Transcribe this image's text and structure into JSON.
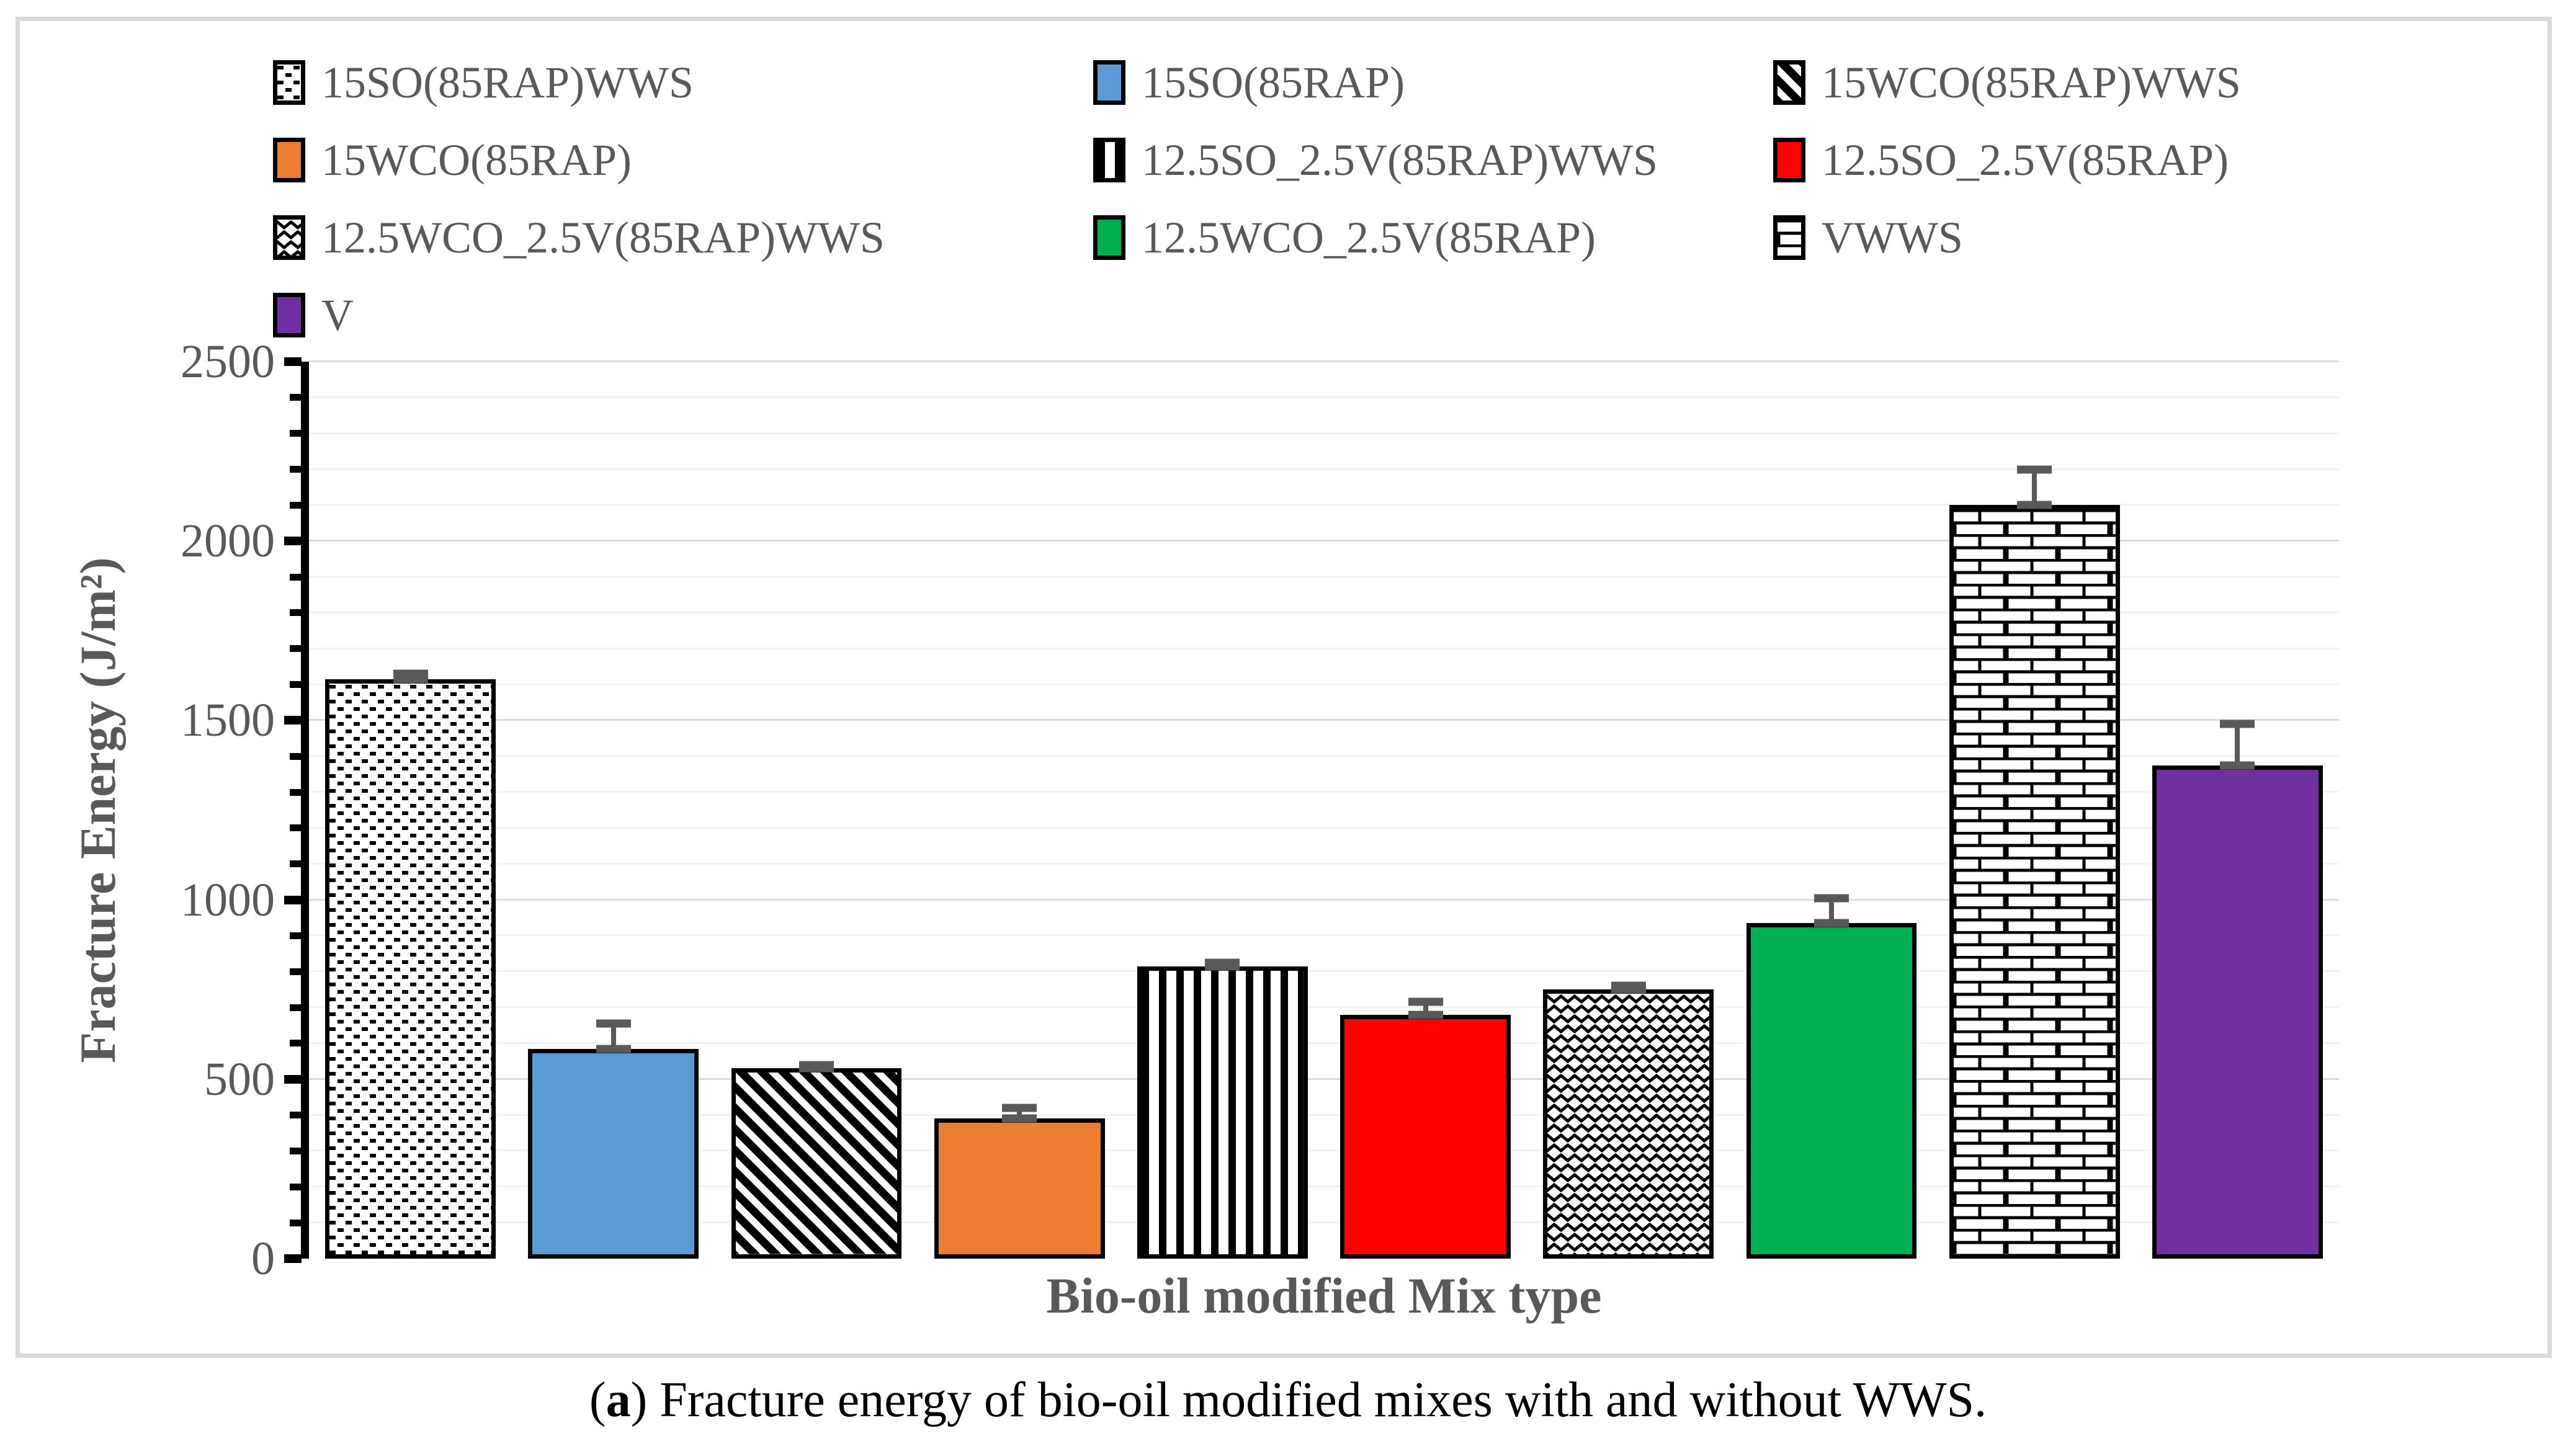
{
  "figure": {
    "caption": {
      "open": "(",
      "letter": "a",
      "close": ")",
      "text": " Fracture energy of bio-oil modified mixes with and without WWS."
    },
    "y_axis": {
      "title": "Fracture Energy (J/m²)",
      "min": 0,
      "max": 2500,
      "minor_step": 100,
      "major_step": 500,
      "tick_labels": [
        "0",
        "500",
        "1000",
        "1500",
        "2000",
        "2500"
      ]
    },
    "x_axis": {
      "title": "Bio-oil modified Mix type"
    },
    "colors": {
      "text_gray": "#595959",
      "error_bar": "#595959",
      "grid_minor": "#F3F3F3",
      "grid_major": "#DCDCDC",
      "frame_border": "#DADADA",
      "bar_outline": "#000000"
    }
  },
  "chart_data": {
    "type": "bar",
    "title": "",
    "xlabel": "Bio-oil modified Mix type",
    "ylabel": "Fracture Energy (J/m²)",
    "ylim": [
      0,
      2500
    ],
    "grid": "horizontal, minor every 100, major every 500",
    "legend_position": "top, 3 columns",
    "categories": [
      "15SO(85RAP)WWS",
      "15SO(85RAP)",
      "15WCO(85RAP)WWS",
      "15WCO(85RAP)",
      "12.5SO_2.5V(85RAP)WWS",
      "12.5SO_2.5V(85RAP)",
      "12.5WCO_2.5V(85RAP)WWS",
      "12.5WCO_2.5V(85RAP)",
      "VWWS",
      "V"
    ],
    "values": [
      1615,
      585,
      530,
      390,
      815,
      680,
      750,
      935,
      2100,
      1375
    ],
    "error_plus": [
      15,
      70,
      10,
      30,
      10,
      35,
      10,
      70,
      100,
      115
    ],
    "series": [
      {
        "name": "15SO(85RAP)WWS",
        "value": 1615,
        "error_plus": 15,
        "fill": "pattern:dots"
      },
      {
        "name": "15SO(85RAP)",
        "value": 585,
        "error_plus": 70,
        "fill": "solid:#5B9BD5"
      },
      {
        "name": "15WCO(85RAP)WWS",
        "value": 530,
        "error_plus": 10,
        "fill": "pattern:diagonal"
      },
      {
        "name": "15WCO(85RAP)",
        "value": 390,
        "error_plus": 30,
        "fill": "solid:#ED7D31"
      },
      {
        "name": "12.5SO_2.5V(85RAP)WWS",
        "value": 815,
        "error_plus": 10,
        "fill": "pattern:vertical"
      },
      {
        "name": "12.5SO_2.5V(85RAP)",
        "value": 680,
        "error_plus": 35,
        "fill": "solid:#FF0000"
      },
      {
        "name": "12.5WCO_2.5V(85RAP)WWS",
        "value": 750,
        "error_plus": 10,
        "fill": "pattern:zigzag"
      },
      {
        "name": "12.5WCO_2.5V(85RAP)",
        "value": 935,
        "error_plus": 70,
        "fill": "solid:#00B050"
      },
      {
        "name": "VWWS",
        "value": 2100,
        "error_plus": 100,
        "fill": "pattern:brick"
      },
      {
        "name": "V",
        "value": 1375,
        "error_plus": 115,
        "fill": "solid:#7030A0"
      }
    ]
  }
}
